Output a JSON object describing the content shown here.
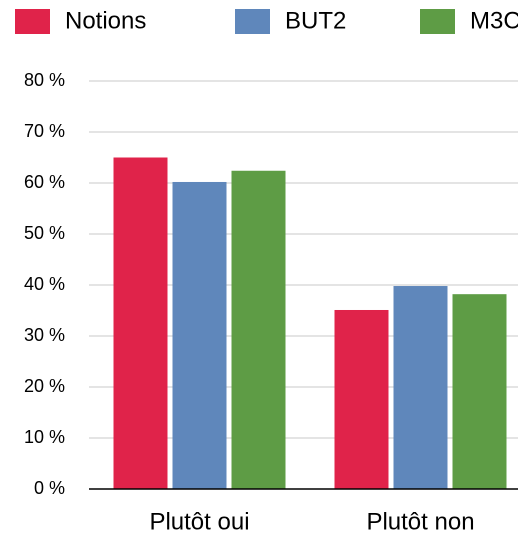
{
  "chart_data": {
    "type": "bar",
    "categories": [
      "Plutôt oui",
      "Plutôt non"
    ],
    "series": [
      {
        "name": "Notions",
        "color": "#e0234a",
        "values": [
          65,
          35.1
        ]
      },
      {
        "name": "BUT2",
        "color": "#5f87bb",
        "values": [
          60.2,
          39.8
        ]
      },
      {
        "name": "M3C",
        "color": "#5e9c45",
        "values": [
          62.4,
          38.2
        ]
      }
    ],
    "ylim": [
      0,
      80
    ],
    "yticks": [
      {
        "value": 0,
        "label": "0 %"
      },
      {
        "value": 10,
        "label": "10 %"
      },
      {
        "value": 20,
        "label": "20 %"
      },
      {
        "value": 30,
        "label": "30 %"
      },
      {
        "value": 40,
        "label": "40 %"
      },
      {
        "value": 50,
        "label": "50 %"
      },
      {
        "value": 60,
        "label": "60 %"
      },
      {
        "value": 70,
        "label": "70 %"
      },
      {
        "value": 80,
        "label": "80 %"
      }
    ],
    "grid": true,
    "legend": "top"
  }
}
